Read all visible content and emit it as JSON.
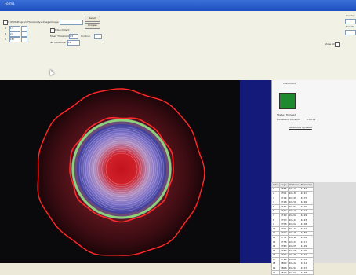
{
  "window": {
    "title": "Form1"
  },
  "toolbar": {
    "path_field_label": "C:\\Path\\Program Files\\AnalyseImage\\Image",
    "buttons": [
      "Select",
      "Process"
    ],
    "checkboxes": [
      "Edge Detect",
      "Show All"
    ],
    "spin_labels": [
      "A",
      "B",
      "C"
    ],
    "spin_values": [
      "1.5",
      "2.0",
      "150"
    ],
    "param_labels": [
      "Mean Threshold",
      "Contour",
      "Nr. Iterations"
    ],
    "param_values": [
      "0.5",
      "",
      "15"
    ],
    "right_labels": [
      "Overlay",
      "Results"
    ]
  },
  "viewer": {
    "colors": {
      "background": "#0a0a0c",
      "contour": "#ff2a2a",
      "inner_band": "#8fd07a",
      "ring": "#4a0f16"
    }
  },
  "results_panel": {
    "header": "Coefficient",
    "swatch_color": "#1d8a2f",
    "status_label": "Status",
    "status_value": "Finished",
    "time_label": "Processing Duration",
    "time_value": "0:00:02",
    "link": "Reference Updated"
  },
  "table": {
    "headers": [
      "Index",
      "Angle",
      "Diameter",
      "Roundness"
    ],
    "rows": [
      [
        "1",
        "168.5",
        "205.13",
        "42.87"
      ],
      [
        "2",
        "170.1",
        "205.30",
        "42.91"
      ],
      [
        "3",
        "171.6",
        "204.95",
        "42.75"
      ],
      [
        "4",
        "172.8",
        "205.51",
        "42.96"
      ],
      [
        "5",
        "173.4",
        "205.84",
        "43.05"
      ],
      [
        "6",
        "174.2",
        "206.10",
        "43.12"
      ],
      [
        "7",
        "174.9",
        "205.62",
        "42.99"
      ],
      [
        "8",
        "175.3",
        "205.44",
        "42.93"
      ],
      [
        "9",
        "175.8",
        "206.02",
        "43.08"
      ],
      [
        "10",
        "176.1",
        "205.77",
        "43.01"
      ],
      [
        "11",
        "176.7",
        "205.25",
        "42.89"
      ],
      [
        "12",
        "177.2",
        "205.91",
        "43.04"
      ],
      [
        "13",
        "177.8",
        "206.33",
        "43.17"
      ],
      [
        "14",
        "178.3",
        "206.05",
        "43.09"
      ],
      [
        "15",
        "178.9",
        "205.68",
        "43.00"
      ],
      [
        "16",
        "179.4",
        "205.36",
        "42.92"
      ],
      [
        "17",
        "179.9",
        "205.80",
        "43.02"
      ],
      [
        "18",
        "180.4",
        "206.22",
        "43.14"
      ],
      [
        "19",
        "180.8",
        "205.97",
        "43.07"
      ],
      [
        "20",
        "181.3",
        "205.59",
        "42.98"
      ]
    ]
  }
}
